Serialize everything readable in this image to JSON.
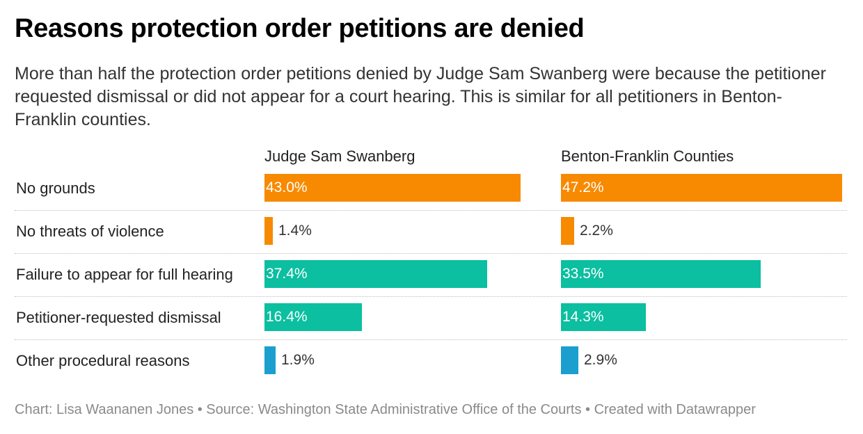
{
  "title": "Reasons protection order petitions are denied",
  "subtitle": "More than half the protection order petitions denied by Judge Sam Swanberg were because the petitioner requested dismissal or did not appear for a court hearing. This is similar for all petitioners in Benton-Franklin counties.",
  "footer": "Chart: Lisa Waananen Jones • Source: Washington State Administrative Office of the Courts • Created with Datawrapper",
  "chart_data": {
    "type": "bar",
    "orientation": "horizontal",
    "unit": "%",
    "categories": [
      "No grounds",
      "No threats of violence",
      "Failure to appear for full hearing",
      "Petitioner-requested dismissal",
      "Other procedural reasons"
    ],
    "series": [
      {
        "name": "Judge Sam Swanberg",
        "values": [
          43.0,
          1.4,
          37.4,
          16.4,
          1.9
        ]
      },
      {
        "name": "Benton-Franklin Counties",
        "values": [
          47.2,
          2.2,
          33.5,
          14.3,
          2.9
        ]
      }
    ],
    "value_labels": [
      [
        "43.0%",
        "1.4%",
        "37.4%",
        "16.4%",
        "1.9%"
      ],
      [
        "47.2%",
        "2.2%",
        "33.5%",
        "14.3%",
        "2.9%"
      ]
    ],
    "bar_colors": [
      "#f78a00",
      "#f78a00",
      "#0bbfa0",
      "#0bbfa0",
      "#1a9fcf"
    ],
    "xlim": [
      0,
      47.2
    ],
    "grid": false
  }
}
